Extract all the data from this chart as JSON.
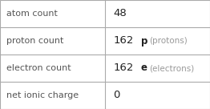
{
  "rows": [
    {
      "label": "atom count",
      "value": "48",
      "symbol": "",
      "suffix": ""
    },
    {
      "label": "proton count",
      "value": "162",
      "symbol": "p",
      "suffix": "(protons)"
    },
    {
      "label": "electron count",
      "value": "162",
      "symbol": "e",
      "suffix": "(electrons)"
    },
    {
      "label": "net ionic charge",
      "value": "0",
      "symbol": "",
      "suffix": ""
    }
  ],
  "col_split": 0.5,
  "bg_color": "#ffffff",
  "border_color": "#aaaaaa",
  "label_color": "#555555",
  "value_color": "#222222",
  "symbol_color": "#222222",
  "suffix_color": "#999999",
  "label_fontsize": 8.0,
  "value_fontsize": 9.5,
  "symbol_fontsize": 8.5,
  "suffix_fontsize": 7.5
}
